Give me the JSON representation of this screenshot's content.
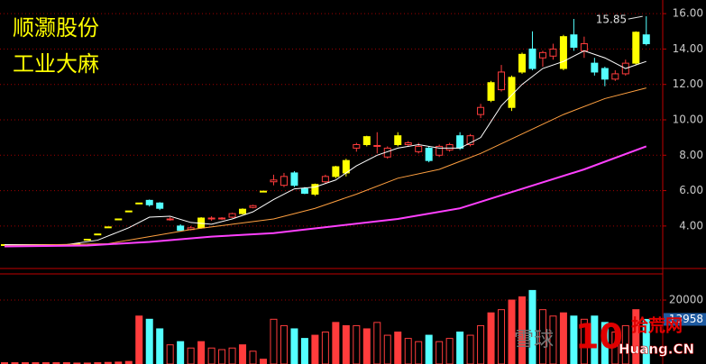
{
  "chart_data": {
    "type": "candlestick",
    "title": "顺灏股份",
    "subtitle": "工业大麻",
    "open": [
      2.95,
      2.95,
      2.95,
      2.95,
      2.95,
      2.95,
      2.95,
      3.0,
      3.25,
      3.55,
      3.95,
      4.4,
      4.85,
      5.3,
      5.45,
      5.3,
      4.4,
      4.0,
      3.8,
      3.9,
      4.4,
      4.4,
      4.5,
      4.7,
      5.05,
      5.95,
      6.5,
      6.3,
      7.0,
      6.1,
      5.8,
      6.5,
      6.8,
      7.0,
      8.4,
      8.6,
      8.5,
      7.9,
      8.6,
      8.6,
      8.2,
      8.4,
      8.0,
      8.3,
      9.1,
      8.6,
      10.3,
      11.1,
      11.7,
      10.7,
      12.7,
      14.0,
      13.5,
      13.6,
      12.9,
      14.8,
      13.9,
      13.2,
      12.9,
      12.3,
      12.6,
      13.2,
      14.8
    ],
    "high": [
      2.95,
      2.95,
      2.95,
      2.95,
      2.95,
      2.95,
      2.95,
      3.0,
      3.25,
      3.55,
      3.95,
      4.4,
      4.85,
      5.3,
      5.5,
      5.35,
      4.5,
      4.1,
      4.0,
      4.5,
      4.55,
      4.5,
      4.75,
      5.0,
      5.2,
      6.0,
      6.9,
      7.0,
      7.1,
      6.2,
      6.4,
      6.9,
      7.4,
      7.8,
      8.7,
      9.1,
      9.3,
      8.5,
      9.3,
      8.8,
      8.7,
      8.5,
      8.6,
      8.7,
      9.3,
      9.2,
      10.9,
      12.2,
      13.1,
      12.5,
      13.8,
      15.0,
      13.9,
      14.3,
      14.8,
      15.7,
      14.7,
      13.5,
      13.0,
      12.8,
      13.4,
      15.0,
      15.85
    ],
    "low": [
      2.95,
      2.95,
      2.95,
      2.95,
      2.95,
      2.95,
      2.95,
      3.0,
      3.25,
      3.55,
      3.95,
      4.4,
      4.85,
      5.3,
      5.1,
      4.9,
      4.3,
      3.7,
      3.75,
      3.85,
      4.3,
      4.35,
      4.45,
      4.65,
      5.0,
      5.95,
      6.3,
      6.2,
      6.2,
      5.8,
      5.7,
      6.4,
      6.7,
      6.8,
      8.2,
      8.5,
      8.1,
      7.8,
      8.5,
      8.5,
      8.1,
      7.6,
      7.9,
      8.2,
      8.3,
      8.5,
      10.1,
      11.0,
      11.6,
      10.5,
      12.6,
      12.8,
      13.0,
      13.4,
      12.8,
      13.9,
      13.5,
      12.5,
      11.9,
      12.2,
      12.5,
      13.1,
      14.2
    ],
    "close": [
      2.95,
      2.95,
      2.95,
      2.95,
      2.95,
      2.95,
      2.95,
      3.0,
      3.25,
      3.55,
      3.95,
      4.4,
      4.85,
      5.3,
      5.2,
      5.0,
      4.35,
      3.75,
      3.9,
      4.45,
      4.45,
      4.45,
      4.7,
      4.95,
      5.15,
      5.97,
      6.6,
      6.8,
      6.3,
      5.85,
      6.35,
      6.8,
      7.35,
      7.7,
      8.6,
      9.05,
      8.55,
      8.4,
      9.1,
      8.7,
      8.5,
      7.7,
      8.5,
      8.6,
      8.4,
      9.1,
      10.7,
      12.1,
      12.7,
      12.4,
      13.7,
      12.9,
      13.8,
      14.0,
      14.7,
      14.1,
      14.3,
      12.7,
      12.3,
      12.6,
      13.2,
      14.95,
      14.3
    ],
    "colors": [
      "#ffff00",
      "#ffff00",
      "#ffff00",
      "#ffff00",
      "#ffff00",
      "#ffff00",
      "#ffff00",
      "#ffff00",
      "#ffff00",
      "#ffff00",
      "#ffff00",
      "#ffff00",
      "#ffff00",
      "#ffff00",
      "#54ffff",
      "#54ffff",
      "#ff3c3c",
      "#54ffff",
      "#ff3c3c",
      "#ffff00",
      "#ff3c3c",
      "#ff3c3c",
      "#ff3c3c",
      "#ffff00",
      "#ff3c3c",
      "#ffff00",
      "#ff3c3c",
      "#ff3c3c",
      "#54ffff",
      "#54ffff",
      "#ffff00",
      "#ff3c3c",
      "#ffff00",
      "#ffff00",
      "#ff3c3c",
      "#ffff00",
      "#ff3c3c",
      "#ff3c3c",
      "#ffff00",
      "#ff3c3c",
      "#ff3c3c",
      "#54ffff",
      "#ff3c3c",
      "#ff3c3c",
      "#54ffff",
      "#ff3c3c",
      "#ff3c3c",
      "#ffff00",
      "#ff3c3c",
      "#ffff00",
      "#ffff00",
      "#54ffff",
      "#ff3c3c",
      "#ff3c3c",
      "#ffff00",
      "#54ffff",
      "#ff3c3c",
      "#54ffff",
      "#54ffff",
      "#ff3c3c",
      "#ff3c3c",
      "#ffff00",
      "#54ffff"
    ],
    "hollow_color": "#ff3c3c",
    "volume": [
      400,
      400,
      400,
      400,
      400,
      400,
      400,
      300,
      300,
      400,
      500,
      600,
      800,
      15000,
      14000,
      11000,
      6000,
      7000,
      5000,
      7000,
      5000,
      4500,
      5000,
      6000,
      4000,
      1500,
      14000,
      12000,
      11000,
      8000,
      9000,
      10000,
      13000,
      12000,
      12000,
      11000,
      13000,
      9000,
      10000,
      8000,
      7000,
      9000,
      7000,
      8000,
      10000,
      9000,
      12000,
      16000,
      17000,
      20000,
      21000,
      23000,
      17000,
      15000,
      16000,
      15000,
      14000,
      15000,
      13000,
      10000,
      12000,
      17000,
      13958
    ],
    "series": [
      {
        "color": "#ffffff",
        "x": [
          0,
          6,
          9,
          12,
          14,
          16,
          18,
          20,
          22,
          24,
          26,
          28,
          30,
          32,
          34,
          36,
          38,
          40,
          42,
          44,
          46,
          48,
          50,
          52,
          54,
          56,
          58,
          60,
          62
        ],
        "values": [
          2.95,
          2.95,
          3.2,
          3.9,
          4.5,
          4.55,
          4.2,
          4.1,
          4.4,
          4.8,
          5.5,
          6.1,
          6.2,
          6.6,
          7.4,
          8.0,
          8.4,
          8.6,
          8.4,
          8.4,
          9.0,
          10.8,
          12.0,
          12.9,
          13.3,
          13.9,
          13.5,
          12.9,
          13.3
        ]
      },
      {
        "color": "#ffa040",
        "x": [
          0,
          10,
          14,
          18,
          22,
          26,
          30,
          34,
          38,
          42,
          46,
          50,
          54,
          58,
          62
        ],
        "values": [
          2.9,
          3.0,
          3.4,
          3.8,
          4.1,
          4.4,
          5.0,
          5.8,
          6.7,
          7.2,
          8.1,
          9.2,
          10.3,
          11.2,
          11.8
        ]
      },
      {
        "color": "#ff40ff",
        "x": [
          0,
          8,
          14,
          20,
          26,
          32,
          38,
          44,
          50,
          56,
          62
        ],
        "values": [
          2.85,
          2.9,
          3.1,
          3.4,
          3.6,
          4.0,
          4.4,
          5.0,
          6.1,
          7.2,
          8.5
        ]
      }
    ],
    "ylim": [
      1.6,
      16.77
    ],
    "yticks": [
      {
        "value": 4,
        "label": "4.00"
      },
      {
        "value": 6,
        "label": "6.00"
      },
      {
        "value": 8,
        "label": "8.00"
      },
      {
        "value": 10,
        "label": "10.00"
      },
      {
        "value": 12,
        "label": "12.00"
      },
      {
        "value": 14,
        "label": "14.00"
      },
      {
        "value": 16,
        "label": "16.00"
      }
    ],
    "volume_ylim": [
      0,
      27900
    ],
    "volume_yticks": [
      20000
    ],
    "volume_last_label": "13958",
    "high_label": "15.85",
    "grid": true
  },
  "watermark": {
    "left": "雪球",
    "num": "10",
    "name": "拾荒网",
    "site": "Huang.CN"
  }
}
